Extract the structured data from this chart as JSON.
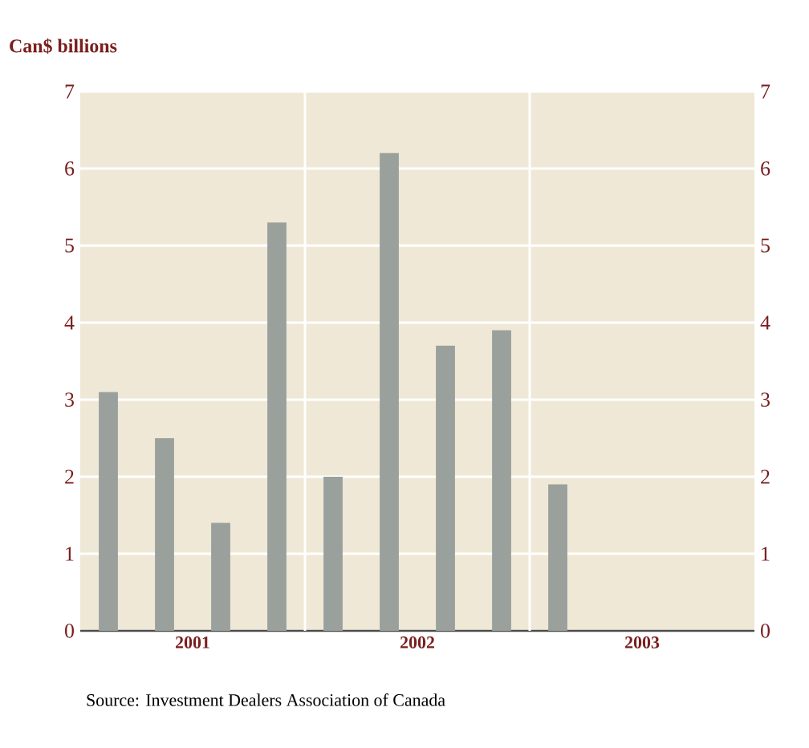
{
  "chart_data": {
    "type": "bar",
    "title": "Can$ billions",
    "x": [
      2001.125,
      2001.375,
      2001.625,
      2001.875,
      2002.125,
      2002.375,
      2002.625,
      2002.875,
      2003.125
    ],
    "values": [
      3.1,
      2.5,
      1.4,
      5.3,
      2.0,
      6.2,
      3.7,
      3.9,
      1.9
    ],
    "color": "#9aa09c",
    "xlim": [
      2001,
      2004
    ],
    "xticks": [
      {
        "value": 2001.5,
        "label": "2001"
      },
      {
        "value": 2002,
        "label": null
      },
      {
        "value": 2002.5,
        "label": "2002"
      },
      {
        "value": 2003,
        "label": null
      },
      {
        "value": 2003.5,
        "label": "2003"
      }
    ],
    "ylim": [
      0,
      7
    ],
    "yticks": [
      0,
      1,
      2,
      3,
      4,
      5,
      6,
      7
    ],
    "y2lim": [
      0,
      7
    ],
    "y2ticks": [
      0,
      1,
      2,
      3,
      4,
      5,
      6,
      7
    ],
    "grid": true,
    "annotations": [
      "Source: Investment Dealers Association of Canada"
    ]
  }
}
